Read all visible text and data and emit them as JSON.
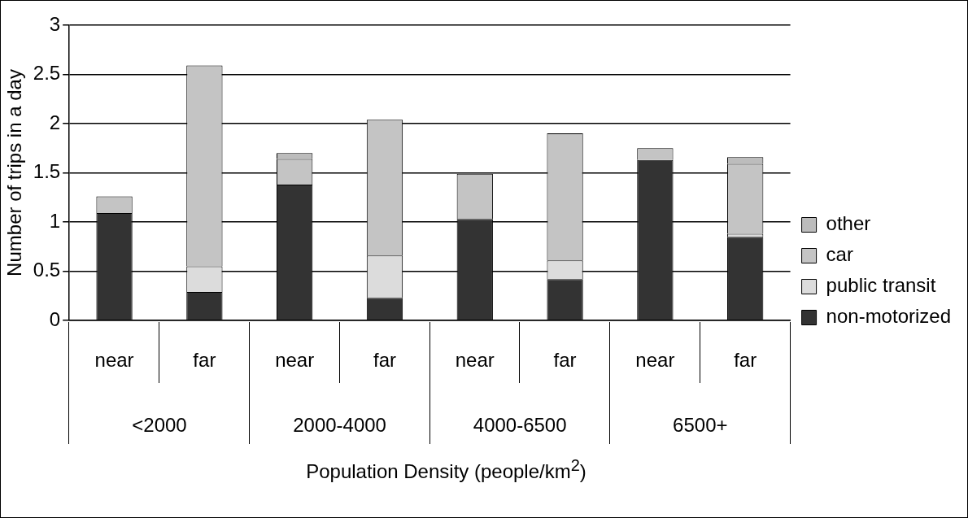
{
  "chart_data": {
    "type": "bar",
    "stacked": true,
    "categories": [
      "near",
      "far",
      "near",
      "far",
      "near",
      "far",
      "near",
      "far"
    ],
    "series": [
      {
        "name": "non-motorized",
        "color": "#333333",
        "values": [
          1.09,
          0.29,
          1.38,
          0.23,
          1.03,
          0.42,
          1.63,
          0.85
        ]
      },
      {
        "name": "public transit",
        "color": "#dcdcdc",
        "values": [
          null,
          0.26,
          null,
          0.43,
          null,
          0.19,
          null,
          0.03
        ]
      },
      {
        "name": "car",
        "color": "#c4c4c4",
        "values": [
          0.17,
          2.04,
          0.26,
          1.38,
          0.46,
          1.29,
          0.12,
          0.71
        ]
      },
      {
        "name": "other",
        "color": "#bcbcbc",
        "values": [
          null,
          null,
          0.06,
          null,
          null,
          null,
          null,
          0.07
        ]
      }
    ],
    "annotations": [
      "<2000",
      "2000-4000",
      "4000-6500",
      "6500+"
    ],
    "xlabel": "Population Density (people/km$^{2}$)",
    "ylabel": "Number of trips in a day",
    "ylim": [
      0,
      3
    ],
    "yticks": [
      0,
      0.5,
      1,
      1.5,
      2,
      2.5,
      3
    ],
    "grid": "y",
    "legend": "right"
  }
}
